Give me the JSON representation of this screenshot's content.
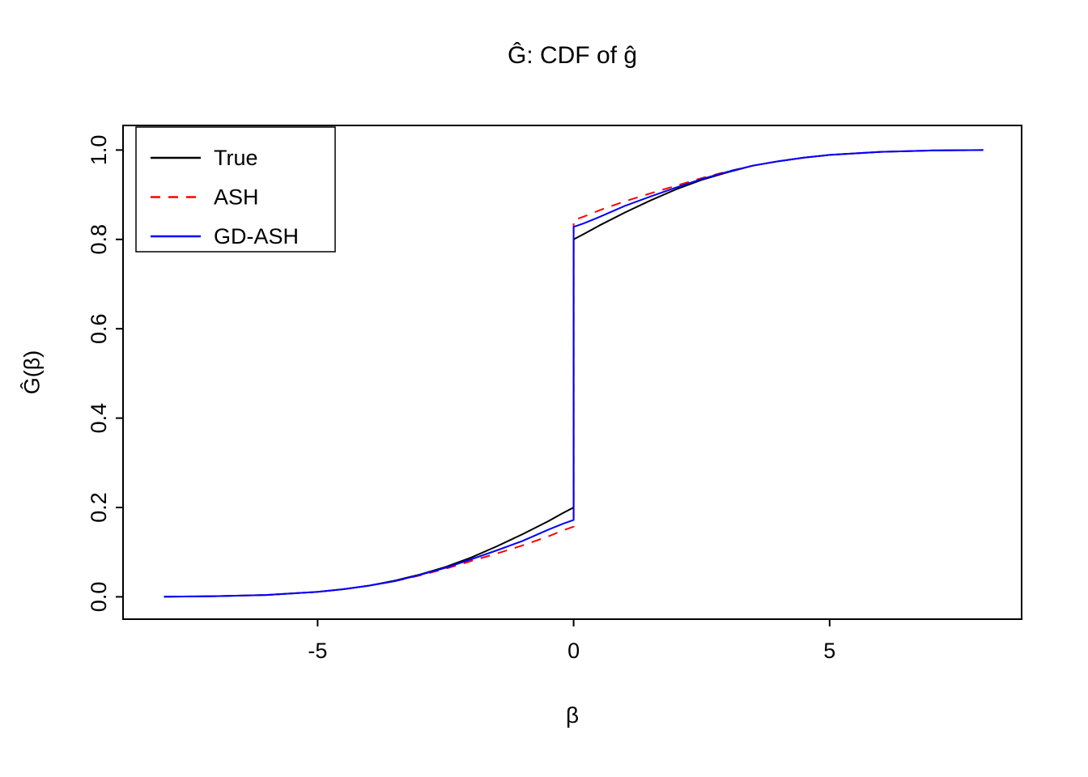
{
  "chart_data": {
    "type": "line",
    "title": "Ĝ: CDF of ĝ",
    "xlabel": "β",
    "ylabel": "Ĝ(β)",
    "xlim": [
      -8.8,
      8.75
    ],
    "ylim": [
      -0.05,
      1.055
    ],
    "xticks": [
      -5,
      0,
      5
    ],
    "yticks": [
      0.0,
      0.2,
      0.4,
      0.6,
      0.8,
      1.0
    ],
    "grid": false,
    "legend": {
      "position": "top-left",
      "labels": [
        "True",
        "ASH",
        "GD-ASH"
      ]
    },
    "series": [
      {
        "name": "True",
        "color": "#000000",
        "dash": "solid",
        "x": [
          -8,
          -7,
          -6,
          -5,
          -4.5,
          -4,
          -3.5,
          -3,
          -2.5,
          -2,
          -1.5,
          -1,
          -0.5,
          -0.2,
          0,
          0,
          0.2,
          0.5,
          1,
          1.5,
          2,
          2.5,
          3,
          3.5,
          4,
          4.5,
          5,
          6,
          7,
          8
        ],
        "y": [
          0.0004,
          0.0015,
          0.0042,
          0.011,
          0.017,
          0.025,
          0.036,
          0.05,
          0.067,
          0.088,
          0.113,
          0.14,
          0.169,
          0.188,
          0.2,
          0.8,
          0.812,
          0.831,
          0.86,
          0.887,
          0.912,
          0.933,
          0.95,
          0.965,
          0.975,
          0.983,
          0.989,
          0.996,
          0.999,
          1.0
        ]
      },
      {
        "name": "ASH",
        "color": "#ff0000",
        "dash": "dashed",
        "x": [
          -8,
          -7,
          -6,
          -5,
          -4.5,
          -4,
          -3.5,
          -3,
          -2.5,
          -2,
          -1.5,
          -1,
          -0.5,
          -0.2,
          0,
          0,
          0.2,
          0.5,
          1,
          1.5,
          2,
          2.5,
          3,
          3.5,
          4,
          4.5,
          5,
          6,
          7,
          8
        ],
        "y": [
          0.0004,
          0.0015,
          0.0042,
          0.011,
          0.017,
          0.025,
          0.035,
          0.048,
          0.063,
          0.08,
          0.097,
          0.115,
          0.135,
          0.149,
          0.157,
          0.843,
          0.851,
          0.865,
          0.885,
          0.903,
          0.92,
          0.937,
          0.952,
          0.965,
          0.975,
          0.983,
          0.989,
          0.996,
          0.999,
          1.0
        ]
      },
      {
        "name": "GD-ASH",
        "color": "#0000ff",
        "dash": "solid",
        "x": [
          -8,
          -7,
          -6,
          -5,
          -4.5,
          -4,
          -3.5,
          -3,
          -2.5,
          -2,
          -1.5,
          -1,
          -0.5,
          -0.2,
          0,
          0,
          0.2,
          0.5,
          1,
          1.5,
          2,
          2.5,
          3,
          3.5,
          4,
          4.5,
          5,
          6,
          7,
          8
        ],
        "y": [
          0.0004,
          0.0015,
          0.0042,
          0.011,
          0.017,
          0.025,
          0.035,
          0.049,
          0.065,
          0.084,
          0.104,
          0.125,
          0.15,
          0.164,
          0.172,
          0.828,
          0.836,
          0.85,
          0.875,
          0.896,
          0.916,
          0.935,
          0.951,
          0.965,
          0.975,
          0.983,
          0.989,
          0.996,
          0.999,
          1.0
        ]
      }
    ]
  }
}
